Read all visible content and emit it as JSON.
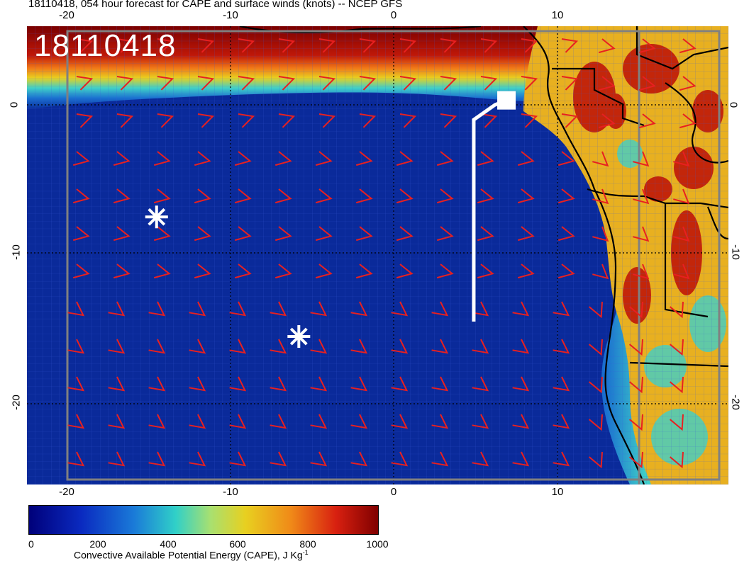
{
  "title": "18110418, 054 hour forecast for CAPE and surface winds (knots) -- NCEP GFS",
  "stamp": "18110418",
  "lon_ticks": [
    "-20",
    "-10",
    "0",
    "10"
  ],
  "lat_ticks": [
    "0",
    "-10",
    "-20"
  ],
  "colorbar": {
    "labels": [
      "0",
      "200",
      "400",
      "600",
      "800",
      "1000"
    ],
    "title": "Convective Available Potential Energy (CAPE), J Kg",
    "title_sup": "-1"
  },
  "colors": {
    "ocean": "#0a2a9a",
    "land_high": "#7a0000",
    "barb": "#e82020",
    "marker": "#ffffff"
  },
  "markers": [
    {
      "lon": -14.5,
      "lat": -7.5,
      "symbol": "asterisk"
    },
    {
      "lon": -5.8,
      "lat": -15.5,
      "symbol": "asterisk"
    }
  ],
  "track": [
    {
      "lon": 4.9,
      "lat": -14.5
    },
    {
      "lon": 4.9,
      "lat": -1.0
    },
    {
      "lon": 6.2,
      "lat": 0.0
    },
    {
      "lon": 6.9,
      "lat": 0.3,
      "symbol": "square"
    }
  ]
}
